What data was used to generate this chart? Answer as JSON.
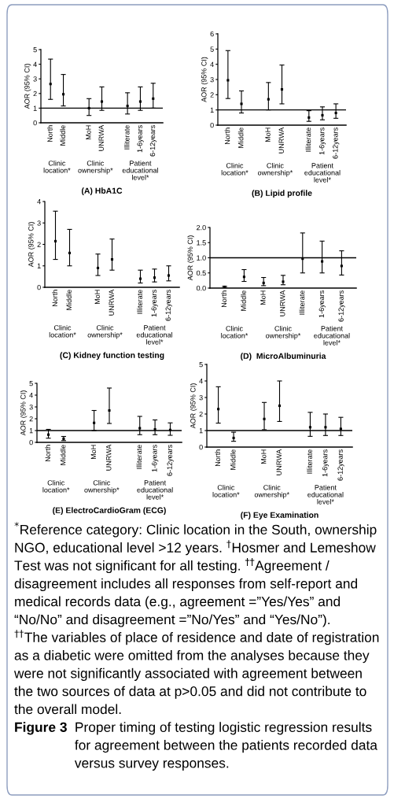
{
  "chart_data": [
    {
      "type": "scatter",
      "title": "(A) HbA1C",
      "ylabel": "AOR (95% CI)",
      "categories": [
        "North",
        "Middle",
        null,
        "MoH",
        "UNRWA",
        null,
        "Illiterate",
        "1-6years",
        "6-12years"
      ],
      "values": [
        2.65,
        1.95,
        null,
        1.0,
        1.45,
        null,
        1.15,
        1.45,
        1.65
      ],
      "errors": [
        [
          1.6,
          4.35
        ],
        [
          1.15,
          3.3
        ],
        null,
        [
          0.5,
          1.65
        ],
        [
          0.85,
          2.45
        ],
        null,
        [
          0.6,
          2.05
        ],
        [
          0.85,
          2.45
        ],
        [
          1.0,
          2.7
        ]
      ],
      "color": "#000000",
      "marker": "square",
      "ylim": [
        0,
        5
      ],
      "yticks": [
        0,
        1,
        2,
        3,
        4,
        5
      ],
      "ref_lines": [
        {
          "axis": "y",
          "value": 1,
          "color": "#000000"
        }
      ],
      "annotations": [
        "Clinic location*",
        "Clinic ownership*",
        "Patient educational level*"
      ]
    },
    {
      "type": "scatter",
      "title": "(B) Lipid profile",
      "ylabel": "AOR (95% CI)",
      "categories": [
        "North",
        "Middle",
        null,
        "MoH",
        "UNRWA",
        null,
        "Illiterate",
        "1-6years",
        "6-12years"
      ],
      "values": [
        2.95,
        1.4,
        null,
        1.7,
        2.35,
        null,
        0.5,
        0.65,
        0.8
      ],
      "errors": [
        [
          1.75,
          4.9
        ],
        [
          0.8,
          2.25
        ],
        null,
        [
          1.0,
          2.8
        ],
        [
          1.4,
          3.95
        ],
        null,
        [
          0.25,
          0.95
        ],
        [
          0.35,
          1.2
        ],
        [
          0.45,
          1.4
        ]
      ],
      "color": "#000000",
      "marker": "square",
      "ylim": [
        0,
        6
      ],
      "yticks": [
        0,
        1,
        2,
        3,
        4,
        5,
        6
      ],
      "ref_lines": [
        {
          "axis": "y",
          "value": 1,
          "color": "#000000"
        }
      ],
      "annotations": [
        "Clinic location*",
        "Clinic ownership*",
        "Patient educational level*"
      ]
    },
    {
      "type": "scatter",
      "title": "(C) Kidney function testing",
      "ylabel": "AOR (95% CI)",
      "categories": [
        "North",
        "Middle",
        null,
        "MoH",
        "UNRWA",
        null,
        "Illiterate",
        "1-6years",
        "6-12years"
      ],
      "values": [
        2.15,
        1.6,
        null,
        0.9,
        1.3,
        null,
        0.4,
        0.45,
        0.55
      ],
      "errors": [
        [
          1.3,
          3.55
        ],
        [
          1.0,
          2.7
        ],
        null,
        [
          0.55,
          1.55
        ],
        [
          0.8,
          2.25
        ],
        null,
        [
          0.2,
          0.8
        ],
        [
          0.25,
          0.85
        ],
        [
          0.3,
          1.0
        ]
      ],
      "color": "#000000",
      "marker": "square",
      "ylim": [
        0,
        4
      ],
      "yticks": [
        0,
        1,
        2,
        3,
        4
      ],
      "annotations": [
        "Clinic location*",
        "Clinic ownership*",
        "Patient educational level*"
      ]
    },
    {
      "type": "scatter",
      "title": "(D)  MicroAlbuminuria",
      "ylabel": "AOR (95% CI)",
      "categories": [
        "North",
        "Middle",
        "MoH",
        "UNRWA",
        "Illiterate",
        "1-6years",
        "6-12years"
      ],
      "values": [
        0.04,
        0.37,
        0.17,
        0.21,
        0.97,
        0.88,
        0.73
      ],
      "errors": [
        [
          0.02,
          0.06
        ],
        [
          0.22,
          0.61
        ],
        [
          0.08,
          0.35
        ],
        [
          0.11,
          0.42
        ],
        [
          0.5,
          1.82
        ],
        [
          0.5,
          1.55
        ],
        [
          0.43,
          1.23
        ]
      ],
      "color": "#000000",
      "marker": "square",
      "ylim": [
        0,
        2
      ],
      "yticks": [
        {
          "value": 0,
          "label": "0.0"
        },
        {
          "value": 0.5,
          "label": "0.5"
        },
        {
          "value": 1,
          "label": "1.0"
        },
        {
          "value": 1.5,
          "label": "1.5"
        },
        {
          "value": 2,
          "label": "2.0"
        }
      ],
      "ref_lines": [
        {
          "axis": "y",
          "value": 1,
          "color": "#000000"
        }
      ],
      "annotations": [
        "Clinic location*",
        "Clinic ownership*",
        "Patient educational level*"
      ]
    },
    {
      "type": "scatter",
      "title": "(E) ElectroCardioGram (ECG)",
      "ylabel": "AOR (95% CI)",
      "categories": [
        "North",
        "Middle",
        null,
        "MoH",
        "UNRWA",
        null,
        "Illiterate",
        "1-6years",
        "6-12years"
      ],
      "values": [
        0.65,
        0.3,
        null,
        1.65,
        2.7,
        null,
        1.2,
        1.1,
        1.05
      ],
      "errors": [
        [
          0.35,
          1.1
        ],
        [
          0.15,
          0.5
        ],
        null,
        [
          1.0,
          2.7
        ],
        [
          1.6,
          4.6
        ],
        null,
        [
          0.65,
          2.2
        ],
        [
          0.65,
          1.9
        ],
        [
          0.6,
          1.65
        ]
      ],
      "color": "#000000",
      "marker": "square",
      "ylim": [
        0,
        5
      ],
      "yticks": [
        0,
        1,
        2,
        3,
        4,
        5
      ],
      "ref_lines": [
        {
          "axis": "y",
          "value": 1,
          "color": "#000000"
        }
      ],
      "annotations": [
        "Clinic location*",
        "Clinic ownership*",
        "Patient educational level*"
      ]
    },
    {
      "type": "scatter",
      "title": "(F) Eye Examination",
      "ylabel": "AOR (95% CI)",
      "categories": [
        "North",
        "Middle",
        null,
        "MoH",
        "UNRWA",
        null,
        "Illiterate",
        "1-6years",
        "6-12years"
      ],
      "values": [
        2.3,
        0.55,
        null,
        1.7,
        2.5,
        null,
        1.2,
        1.2,
        1.1
      ],
      "errors": [
        [
          1.45,
          3.65
        ],
        [
          0.35,
          0.9
        ],
        null,
        [
          1.05,
          2.7
        ],
        [
          1.55,
          4.0
        ],
        null,
        [
          0.65,
          2.1
        ],
        [
          0.7,
          2.0
        ],
        [
          0.7,
          1.8
        ]
      ],
      "color": "#000000",
      "marker": "square",
      "ylim": [
        0,
        5
      ],
      "yticks": [
        0,
        1,
        2,
        3,
        4,
        5
      ],
      "ref_lines": [
        {
          "axis": "y",
          "value": 1,
          "color": "#000000"
        }
      ],
      "annotations": [
        "Clinic location*",
        "Clinic ownership*",
        "Patient educational level*"
      ]
    },
    {
      "type": "other",
      "annotations": [
        "$^{*}$Reference category: Clinic location in the South, ownership NGO, educational level >12 years. $^{†}$Hosmer and Lemeshow Test was not significant for all testing. $^{††}$Agreement / disagreement includes all responses from self-report and medical records data (e.g., agreement =”Yes/Yes” and “No/No” and disagreement =”No/Yes” and “Yes/No”). $^{††}$The variables of place of residence and date of registration as a diabetic were omitted from the analyses because they were not significantly associated with agreement between the two sources of data at p>0.05 and did not contribute to the overall model."
      ],
      "title": "Figure 3",
      "subtitle": "Proper timing of testing logistic regression results for agreement between the patients recorded data versus survey responses."
    }
  ]
}
